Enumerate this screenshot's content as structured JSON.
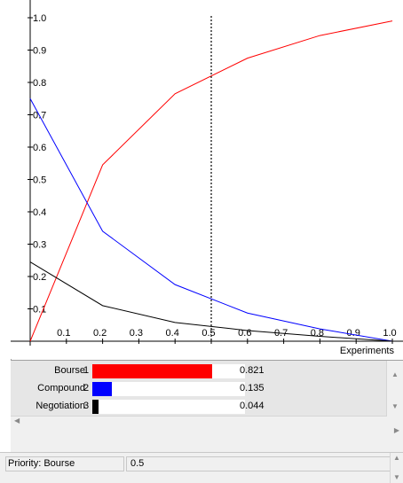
{
  "chart_data": {
    "type": "line",
    "title": "",
    "xlabel": "Experiments",
    "ylabel": "",
    "xlim": [
      0,
      1.0
    ],
    "ylim": [
      0,
      1.0
    ],
    "x_ticks": [
      "0.1",
      "0.2",
      "0.3",
      "0.4",
      "0.5",
      "0.6",
      "0.7",
      "0.8",
      "0.9",
      "1.0"
    ],
    "y_ticks": [
      "0.1",
      "0.2",
      "0.3",
      "0.4",
      "0.5",
      "0.6",
      "0.7",
      "0.8",
      "0.9",
      "1.0"
    ],
    "grid": false,
    "marker_line_x": 0.5,
    "series": [
      {
        "color": "#ff0000",
        "x": [
          0,
          0.2,
          0.4,
          0.6,
          0.8,
          1.0
        ],
        "y": [
          0.0,
          0.545,
          0.765,
          0.875,
          0.945,
          0.99
        ]
      },
      {
        "color": "#0000ff",
        "x": [
          0,
          0.2,
          0.4,
          0.6,
          0.8,
          1.0
        ],
        "y": [
          0.75,
          0.34,
          0.175,
          0.087,
          0.038,
          0.0
        ]
      },
      {
        "color": "#000000",
        "x": [
          0,
          0.2,
          0.4,
          0.6,
          0.8,
          1.0
        ],
        "y": [
          0.245,
          0.11,
          0.058,
          0.033,
          0.015,
          0.0
        ]
      }
    ]
  },
  "legend": {
    "rows": [
      {
        "name": "Bourse",
        "rank": "1",
        "value": "0.821",
        "fraction": 0.821,
        "color": "#ff0000"
      },
      {
        "name": "Compound",
        "rank": "2",
        "value": "0.135",
        "fraction": 0.135,
        "color": "#0000ff"
      },
      {
        "name": "Negotiation",
        "rank": "3",
        "value": "0.044",
        "fraction": 0.044,
        "color": "#000000"
      }
    ]
  },
  "status": {
    "label": "Priority: Bourse",
    "value": "0.5"
  },
  "icons": {
    "scroll_up": "scroll-up-arrow",
    "scroll_down": "scroll-down-arrow",
    "scroll_left": "scroll-left-arrow",
    "scroll_right": "scroll-right-arrow"
  }
}
